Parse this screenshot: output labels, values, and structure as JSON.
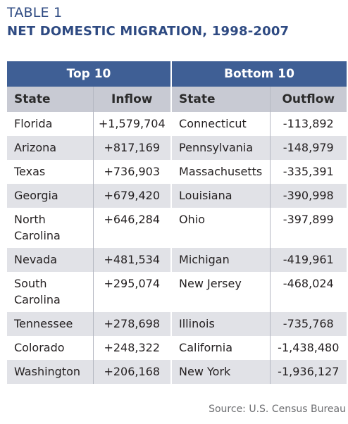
{
  "label": "TABLE 1",
  "title": "NET DOMESTIC MIGRATION, 1998-2007",
  "groups": {
    "top": "Top 10",
    "bottom": "Bottom 10"
  },
  "columns": {
    "state_left": "State",
    "inflow": "Inflow",
    "state_right": "State",
    "outflow": "Outflow"
  },
  "rows": [
    {
      "top_state": "Florida",
      "inflow": "+1,579,704",
      "bottom_state": "Connecticut",
      "outflow": "-113,892"
    },
    {
      "top_state": "Arizona",
      "inflow": "+817,169",
      "bottom_state": "Pennsylvania",
      "outflow": "-148,979"
    },
    {
      "top_state": "Texas",
      "inflow": "+736,903",
      "bottom_state": "Massachusetts",
      "outflow": "-335,391"
    },
    {
      "top_state": "Georgia",
      "inflow": "+679,420",
      "bottom_state": "Louisiana",
      "outflow": "-390,998"
    },
    {
      "top_state": "North Carolina",
      "inflow": "+646,284",
      "bottom_state": "Ohio",
      "outflow": "-397,899"
    },
    {
      "top_state": "Nevada",
      "inflow": "+481,534",
      "bottom_state": "Michigan",
      "outflow": "-419,961"
    },
    {
      "top_state": "South Carolina",
      "inflow": "+295,074",
      "bottom_state": "New Jersey",
      "outflow": "-468,024"
    },
    {
      "top_state": "Tennessee",
      "inflow": "+278,698",
      "bottom_state": "Illinois",
      "outflow": "-735,768"
    },
    {
      "top_state": "Colorado",
      "inflow": "+248,322",
      "bottom_state": "California",
      "outflow": "-1,438,480"
    },
    {
      "top_state": "Washington",
      "inflow": "+206,168",
      "bottom_state": "New York",
      "outflow": "-1,936,127"
    }
  ],
  "source": "Source: U.S. Census Bureau",
  "colors": {
    "title": "#2e4a82",
    "group_header": "#3f5f95",
    "column_header": "#c8cad3",
    "stripe": "#e1e2e7"
  }
}
